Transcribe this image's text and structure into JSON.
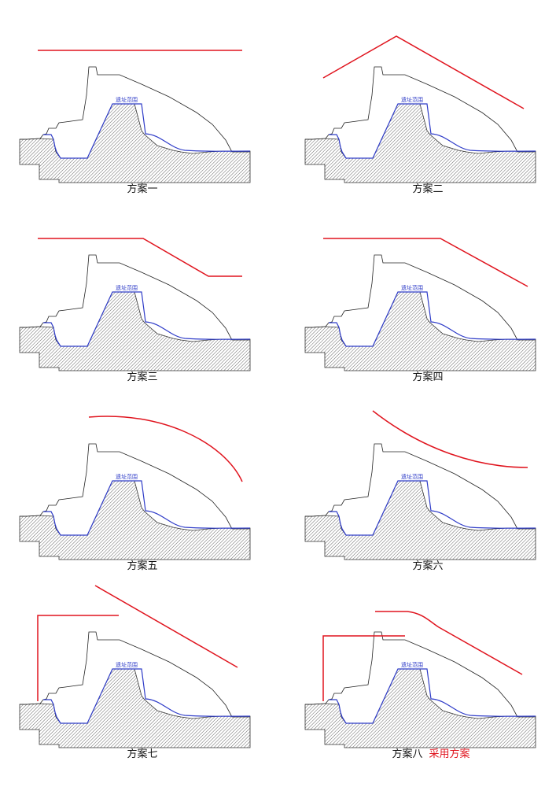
{
  "panels": [
    {
      "id": "scheme-1",
      "caption": "方案一",
      "adopted": "",
      "region_label": "遗址范围",
      "shape": "flat"
    },
    {
      "id": "scheme-2",
      "caption": "方案二",
      "adopted": "",
      "region_label": "遗址范围",
      "shape": "gable"
    },
    {
      "id": "scheme-3",
      "caption": "方案三",
      "adopted": "",
      "region_label": "遗址范围",
      "shape": "flat-slope-flat"
    },
    {
      "id": "scheme-4",
      "caption": "方案四",
      "adopted": "",
      "region_label": "遗址范围",
      "shape": "flat-slope"
    },
    {
      "id": "scheme-5",
      "caption": "方案五",
      "adopted": "",
      "region_label": "遗址范围",
      "shape": "convex-arc"
    },
    {
      "id": "scheme-6",
      "caption": "方案六",
      "adopted": "",
      "region_label": "遗址范围",
      "shape": "concave-arc"
    },
    {
      "id": "scheme-7",
      "caption": "方案七",
      "adopted": "",
      "region_label": "遗址范围",
      "shape": "frame-and-slope"
    },
    {
      "id": "scheme-8",
      "caption": "方案八",
      "adopted": "采用方案",
      "region_label": "遗址范围",
      "shape": "frame-and-curved-slope"
    }
  ],
  "colors": {
    "roof": "#e0141e",
    "site_outline": "#2f3cc8",
    "terrain_line": "#222222",
    "hatch": "#555555",
    "adopted_text": "#e0141e"
  }
}
